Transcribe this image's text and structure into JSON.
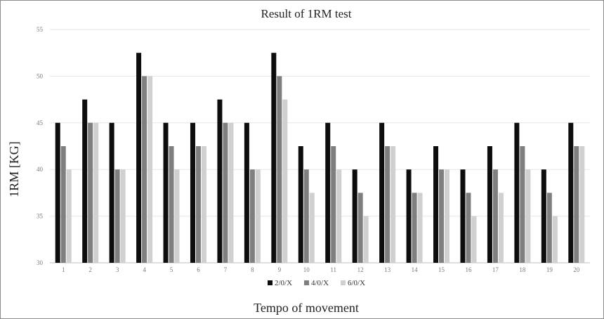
{
  "chart_data": {
    "type": "bar",
    "title": "Result of 1RM test",
    "xlabel": "Tempo of movement",
    "ylabel": "1RM [KG]",
    "ylim": [
      30,
      55
    ],
    "yticks": [
      30,
      35,
      40,
      45,
      50,
      55
    ],
    "grid": true,
    "legend_position": "bottom",
    "categories": [
      "1",
      "2",
      "3",
      "4",
      "5",
      "6",
      "7",
      "8",
      "9",
      "10",
      "11",
      "12",
      "13",
      "14",
      "15",
      "16",
      "17",
      "18",
      "19",
      "20"
    ],
    "series": [
      {
        "name": "2/0/X",
        "color": "#0d0d0d",
        "values": [
          45,
          47.5,
          45,
          52.5,
          45,
          45,
          47.5,
          45,
          52.5,
          42.5,
          45,
          40,
          45,
          40,
          42.5,
          40,
          42.5,
          45,
          40,
          45
        ]
      },
      {
        "name": "4/0/X",
        "color": "#7f7f7f",
        "values": [
          42.5,
          45,
          40,
          50,
          42.5,
          42.5,
          45,
          40,
          50,
          40,
          42.5,
          37.5,
          42.5,
          37.5,
          40,
          37.5,
          40,
          42.5,
          37.5,
          42.5
        ]
      },
      {
        "name": "6/0/X",
        "color": "#d0d0d0",
        "values": [
          40,
          45,
          40,
          50,
          40,
          42.5,
          45,
          40,
          47.5,
          37.5,
          40,
          35,
          42.5,
          37.5,
          40,
          35,
          37.5,
          40,
          35,
          42.5
        ]
      }
    ]
  }
}
